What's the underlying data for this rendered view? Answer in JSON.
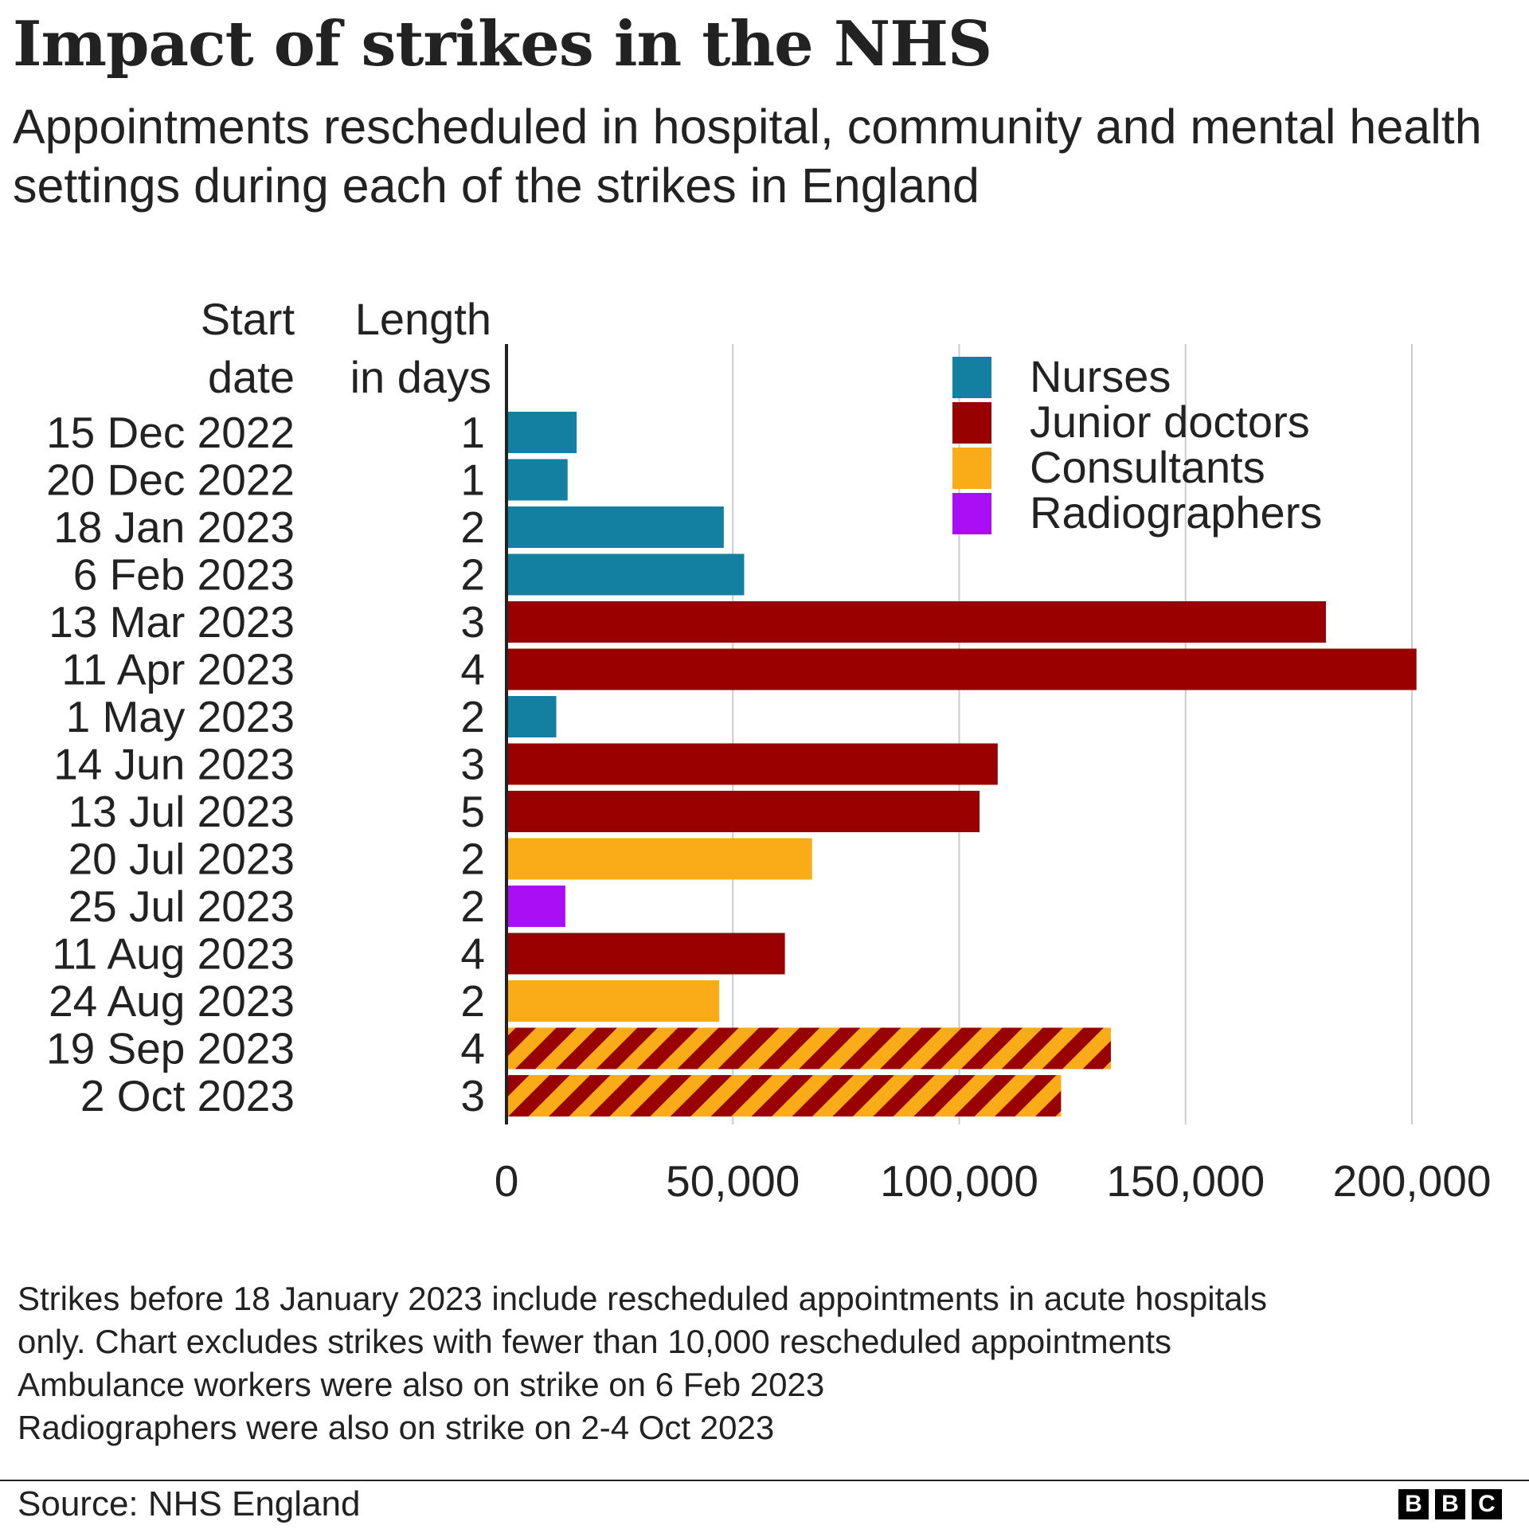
{
  "title": "Impact of strikes in the NHS",
  "subtitle": "Appointments rescheduled in hospital, community and mental health settings during each of the strikes in England",
  "column_headers": {
    "start_date": [
      "Start",
      "date"
    ],
    "length": [
      "Length",
      "in days"
    ]
  },
  "notes": [
    "Strikes before 18 January 2023 include rescheduled appointments in acute hospitals",
    "only. Chart excludes strikes with fewer than 10,000 rescheduled appointments",
    "Ambulance workers were also on strike on 6 Feb 2023",
    "Radiographers were also on strike on 2-4 Oct 2023"
  ],
  "source": "Source: NHS England",
  "logo_letters": [
    "B",
    "B",
    "C"
  ],
  "colors": {
    "Nurses": "#1380A1",
    "Junior doctors": "#990000",
    "Consultants": "#FAAB18",
    "Radiographers": "#AA0EF5",
    "grid": "#cccccc",
    "axis": "#222222"
  },
  "chart_data": {
    "type": "bar",
    "orientation": "horizontal",
    "title": "Impact of strikes in the NHS",
    "xlim": [
      0,
      200000
    ],
    "xticks": [
      0,
      50000,
      100000,
      150000,
      200000
    ],
    "xtick_labels": [
      "0",
      "50,000",
      "100,000",
      "150,000",
      "200,000"
    ],
    "grid": true,
    "legend": {
      "placement": "top-right",
      "entries": [
        "Nurses",
        "Junior doctors",
        "Consultants",
        "Radiographers"
      ]
    },
    "rows": [
      {
        "date": "15 Dec 2022",
        "length": "1",
        "value": 15500,
        "group": "Nurses"
      },
      {
        "date": "20 Dec 2022",
        "length": "1",
        "value": 13500,
        "group": "Nurses"
      },
      {
        "date": "18 Jan 2023",
        "length": "2",
        "value": 48000,
        "group": "Nurses"
      },
      {
        "date": "6 Feb 2023",
        "length": "2",
        "value": 52500,
        "group": "Nurses"
      },
      {
        "date": "13 Mar 2023",
        "length": "3",
        "value": 181000,
        "group": "Junior doctors"
      },
      {
        "date": "11 Apr 2023",
        "length": "4",
        "value": 201000,
        "group": "Junior doctors"
      },
      {
        "date": "1 May 2023",
        "length": "2",
        "value": 11000,
        "group": "Nurses"
      },
      {
        "date": "14 Jun 2023",
        "length": "3",
        "value": 108500,
        "group": "Junior doctors"
      },
      {
        "date": "13 Jul 2023",
        "length": "5",
        "value": 104500,
        "group": "Junior doctors"
      },
      {
        "date": "20 Jul 2023",
        "length": "2",
        "value": 67500,
        "group": "Consultants"
      },
      {
        "date": "25 Jul 2023",
        "length": "2",
        "value": 13000,
        "group": "Radiographers"
      },
      {
        "date": "11 Aug 2023",
        "length": "4",
        "value": 61500,
        "group": "Junior doctors"
      },
      {
        "date": "24 Aug 2023",
        "length": "2",
        "value": 47000,
        "group": "Consultants"
      },
      {
        "date": "19 Sep 2023",
        "length": "4",
        "value": 133500,
        "group": "Junior doctors + Consultants"
      },
      {
        "date": "2 Oct 2023",
        "length": "3",
        "value": 122500,
        "group": "Junior doctors + Consultants"
      }
    ]
  }
}
